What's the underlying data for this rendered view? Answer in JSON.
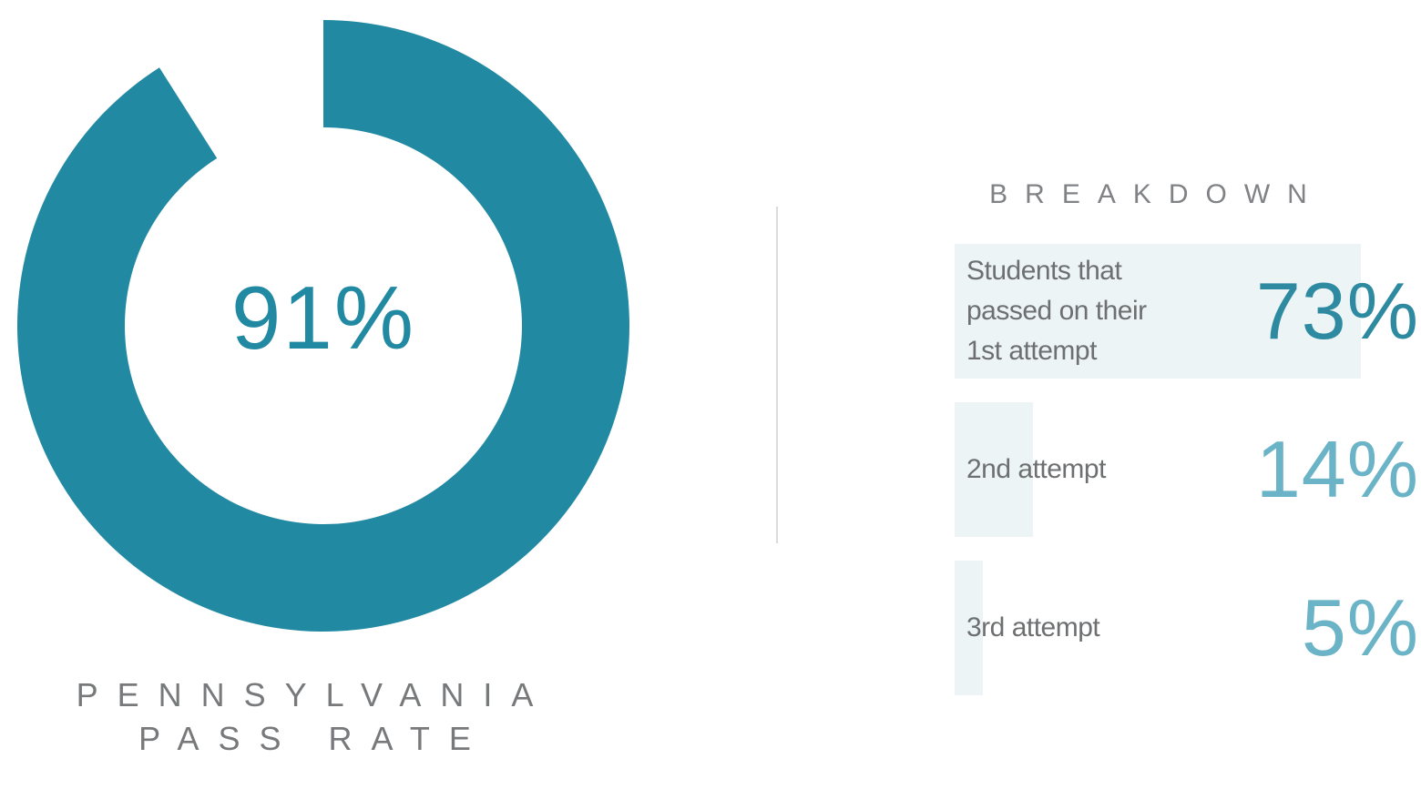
{
  "colors": {
    "accent": "#2289a3",
    "bar_background": "#ecf4f6",
    "label_gray": "#77797b",
    "pct_first": "#2e8aa0",
    "pct_other": "#6bb3c6"
  },
  "chart_data": [
    {
      "type": "pie",
      "variant": "donut",
      "value_label": "91%",
      "slices": [
        {
          "name": "Pass",
          "value": 91
        },
        {
          "name": "Gap",
          "value": 9
        }
      ],
      "title_lines": [
        "PENNSYLVANIA",
        "PASS RATE"
      ]
    },
    {
      "type": "bar",
      "orientation": "horizontal",
      "title": "BREAKDOWN",
      "categories": [
        "Students that passed on their 1st attempt",
        "2nd attempt",
        "3rd attempt"
      ],
      "values": [
        73,
        14,
        5
      ],
      "value_labels": [
        "73%",
        "14%",
        "5%"
      ]
    }
  ]
}
